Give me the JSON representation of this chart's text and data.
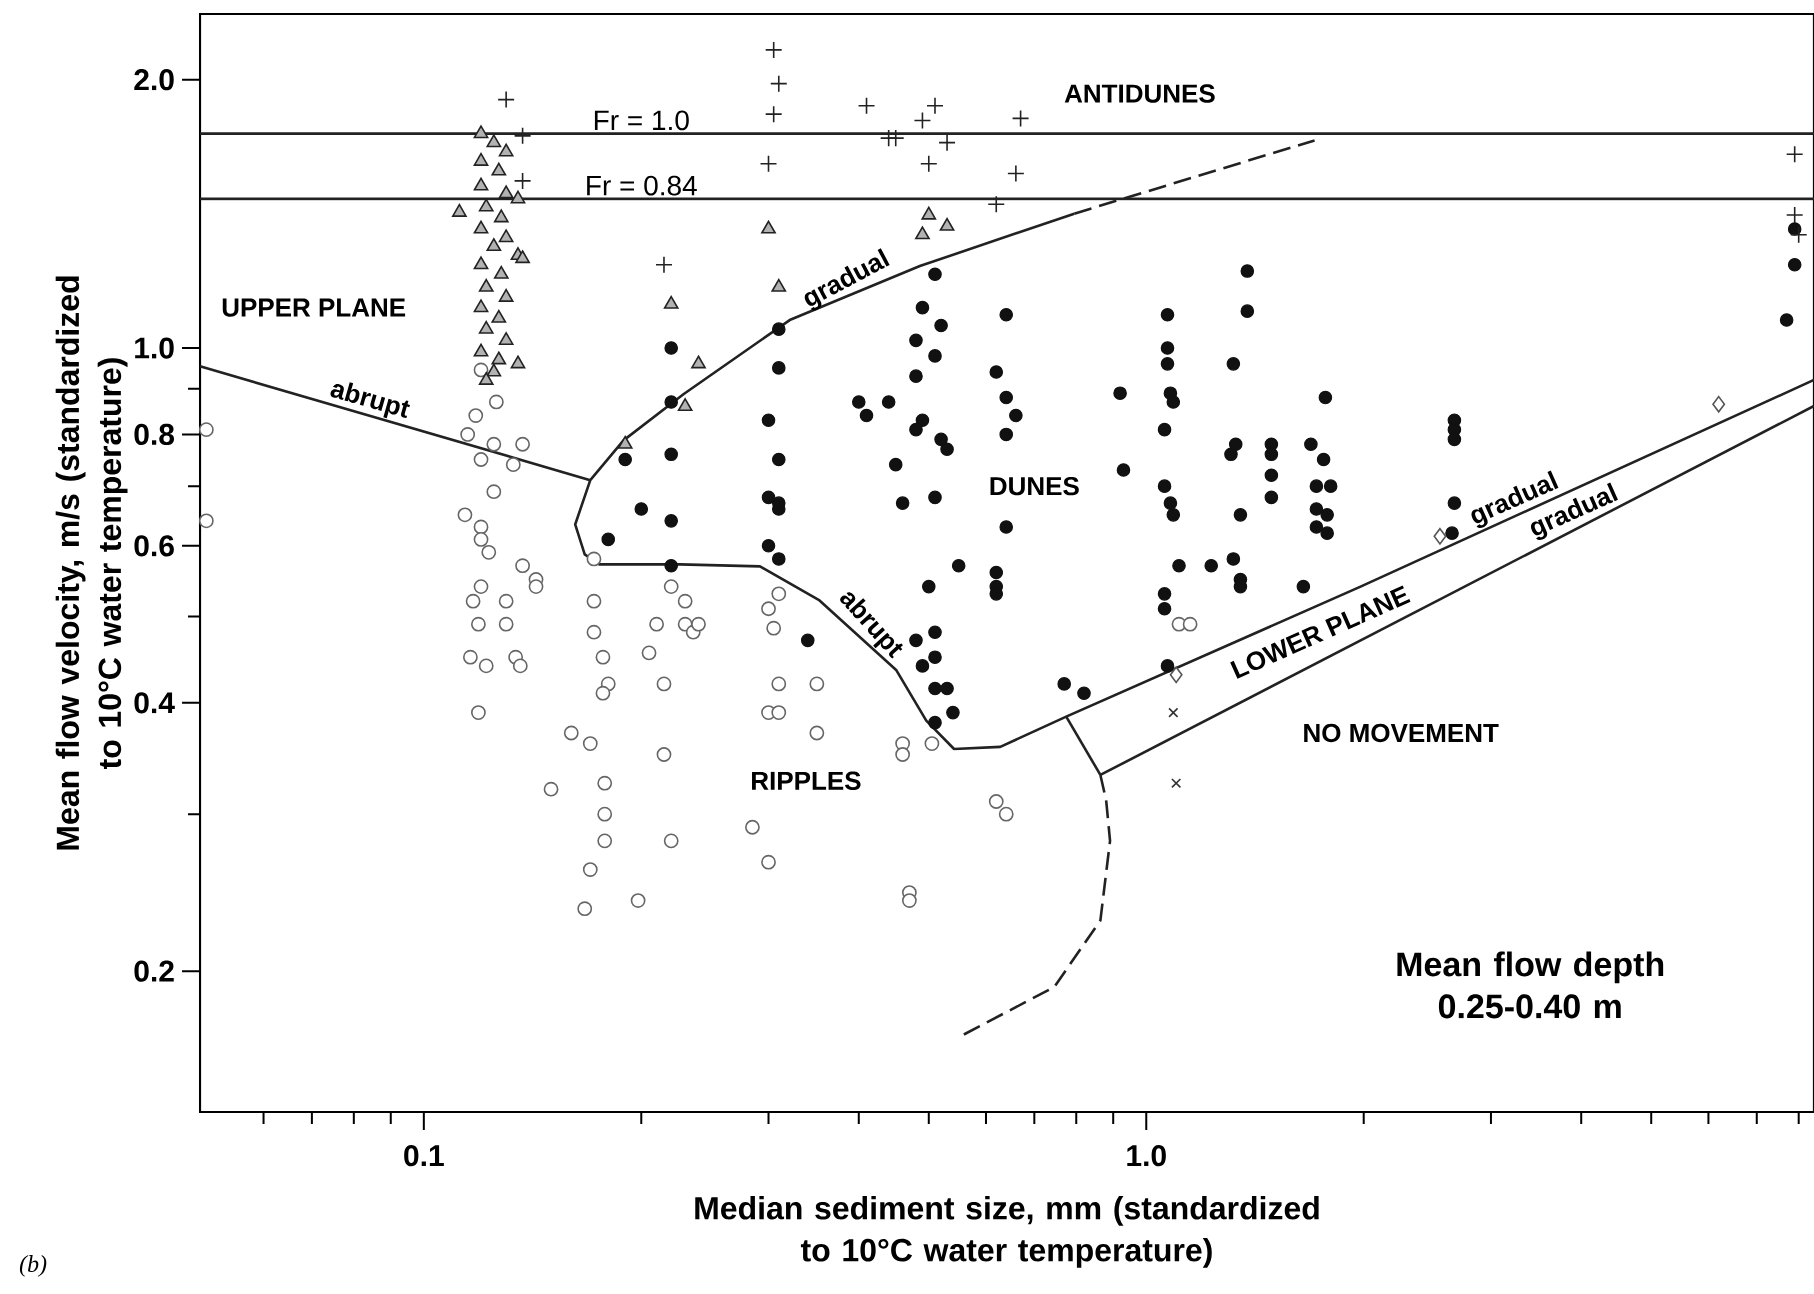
{
  "chart_data": {
    "type": "scatter",
    "log": "xy",
    "xlabel": "Median sediment size, mm (standardized to 10°C water temperature)",
    "ylabel": "Mean flow velocity, m/s (standardized to 10°C water temperature)",
    "xlim": [
      0.049,
      8.4
    ],
    "ylim": [
      0.139,
      2.37
    ],
    "xticks": [
      {
        "value": 0.06,
        "label": null
      },
      {
        "value": 0.07,
        "label": null
      },
      {
        "value": 0.08,
        "label": null
      },
      {
        "value": 0.09,
        "label": null
      },
      0.1,
      {
        "value": 0.2,
        "label": null
      },
      {
        "value": 0.3,
        "label": null
      },
      {
        "value": 0.4,
        "label": null
      },
      {
        "value": 0.5,
        "label": null
      },
      {
        "value": 0.6,
        "label": null
      },
      {
        "value": 0.7,
        "label": null
      },
      {
        "value": 0.8,
        "label": null
      },
      {
        "value": 0.9,
        "label": null
      },
      {
        "value": 1,
        "label": "1.0"
      },
      {
        "value": 2,
        "label": null
      },
      {
        "value": 3,
        "label": null
      },
      {
        "value": 4,
        "label": null
      },
      {
        "value": 5,
        "label": null
      },
      {
        "value": 6,
        "label": null
      },
      {
        "value": 7,
        "label": null
      },
      {
        "value": 8,
        "label": null
      }
    ],
    "yticks": [
      0.2,
      {
        "value": 0.3,
        "label": null
      },
      0.4,
      {
        "value": 0.5,
        "label": null
      },
      0.6,
      {
        "value": 0.7,
        "label": null
      },
      0.8,
      {
        "value": 0.9,
        "label": null
      },
      {
        "value": 1,
        "label": "1.0"
      },
      {
        "value": 2,
        "label": "2.0"
      }
    ],
    "ref_lines": [
      {
        "axis": "y",
        "value": 1.74,
        "color": "#222222"
      },
      {
        "axis": "y",
        "value": 1.47,
        "color": "#222222"
      }
    ],
    "series": [
      {
        "marker": "open circle",
        "color": "#666666",
        "x": [
          0.05,
          0.05,
          0.12,
          0.126,
          0.118,
          0.115,
          0.125,
          0.137,
          0.12,
          0.133,
          0.125,
          0.114,
          0.12,
          0.12,
          0.123,
          0.137,
          0.143,
          0.12,
          0.117,
          0.13,
          0.119,
          0.13,
          0.116,
          0.122,
          0.134,
          0.136,
          0.119,
          0.143,
          0.172,
          0.172,
          0.172,
          0.177,
          0.18,
          0.177,
          0.16,
          0.17,
          0.15,
          0.178,
          0.178,
          0.178,
          0.17,
          0.167,
          0.198,
          0.205,
          0.21,
          0.215,
          0.215,
          0.22,
          0.22,
          0.23,
          0.23,
          0.236,
          0.24,
          0.285,
          0.3,
          0.3,
          0.31,
          0.3,
          0.305,
          0.31,
          0.31,
          0.35,
          0.35,
          0.46,
          0.46,
          0.505,
          0.62,
          0.64,
          0.47,
          0.47,
          1.11,
          1.15
        ],
        "values": [
          0.81,
          0.64,
          0.945,
          0.87,
          0.84,
          0.8,
          0.78,
          0.78,
          0.75,
          0.74,
          0.69,
          0.65,
          0.63,
          0.61,
          0.59,
          0.57,
          0.55,
          0.54,
          0.52,
          0.52,
          0.49,
          0.49,
          0.45,
          0.44,
          0.45,
          0.44,
          0.39,
          0.54,
          0.58,
          0.52,
          0.48,
          0.45,
          0.42,
          0.41,
          0.37,
          0.36,
          0.32,
          0.325,
          0.3,
          0.28,
          0.26,
          0.235,
          0.24,
          0.455,
          0.49,
          0.42,
          0.35,
          0.28,
          0.54,
          0.52,
          0.49,
          0.48,
          0.49,
          0.29,
          0.265,
          0.39,
          0.39,
          0.51,
          0.485,
          0.42,
          0.53,
          0.42,
          0.37,
          0.36,
          0.35,
          0.36,
          0.31,
          0.3,
          0.245,
          0.24,
          0.49,
          0.49
        ]
      },
      {
        "marker": "circle",
        "color": "#111111",
        "x": [
          0.31,
          0.31,
          0.3,
          0.31,
          0.3,
          0.31,
          0.3,
          0.31,
          0.22,
          0.22,
          0.22,
          0.2,
          0.22,
          0.18,
          0.22,
          0.19,
          0.51,
          0.49,
          0.52,
          0.48,
          0.51,
          0.48,
          0.64,
          0.62,
          0.64,
          0.66,
          0.64,
          0.4,
          0.44,
          0.41,
          0.49,
          0.48,
          0.52,
          0.53,
          0.45,
          0.46,
          0.51,
          0.64,
          0.55,
          0.5,
          0.62,
          0.62,
          0.31,
          0.92,
          0.93,
          1.07,
          1.07,
          1.07,
          1.08,
          1.09,
          1.06,
          1.06,
          1.08,
          1.09,
          1.11,
          1.06,
          1.23,
          1.32,
          1.35,
          1.38,
          1.38,
          1.32,
          1.33,
          1.31,
          1.35,
          1.49,
          1.49,
          1.49,
          1.49,
          1.77,
          1.69,
          1.76,
          1.72,
          1.8,
          1.72,
          1.78,
          1.72,
          1.78,
          1.65,
          2.67,
          2.67,
          2.67,
          2.67,
          2.65,
          7.9,
          7.9,
          7.7,
          0.34,
          0.48,
          0.51,
          0.49,
          0.51,
          0.51,
          0.53,
          0.54,
          0.51,
          0.77,
          0.82,
          1.07,
          1.06,
          1.35,
          0.62
        ],
        "values": [
          1.05,
          0.95,
          0.83,
          0.75,
          0.68,
          0.66,
          0.6,
          0.58,
          1.0,
          0.87,
          0.76,
          0.66,
          0.64,
          0.61,
          0.57,
          0.75,
          1.21,
          1.11,
          1.06,
          1.02,
          0.98,
          0.93,
          1.09,
          0.94,
          0.88,
          0.84,
          0.8,
          0.87,
          0.87,
          0.84,
          0.83,
          0.81,
          0.79,
          0.77,
          0.74,
          0.67,
          0.68,
          0.63,
          0.57,
          0.54,
          0.56,
          0.54,
          0.67,
          0.89,
          0.73,
          1.09,
          1.0,
          0.96,
          0.89,
          0.87,
          0.81,
          0.7,
          0.67,
          0.65,
          0.57,
          0.53,
          0.57,
          0.58,
          0.55,
          1.22,
          1.1,
          0.96,
          0.78,
          0.76,
          0.65,
          0.78,
          0.76,
          0.72,
          0.68,
          0.88,
          0.78,
          0.75,
          0.7,
          0.7,
          0.66,
          0.65,
          0.63,
          0.62,
          0.54,
          0.83,
          0.81,
          0.79,
          0.67,
          0.62,
          1.36,
          1.24,
          1.075,
          0.47,
          0.47,
          0.48,
          0.44,
          0.45,
          0.415,
          0.415,
          0.39,
          0.38,
          0.42,
          0.41,
          0.44,
          0.51,
          0.54,
          0.53
        ]
      },
      {
        "marker": "triangle",
        "color": "#222222",
        "x": [
          0.12,
          0.125,
          0.13,
          0.12,
          0.127,
          0.12,
          0.13,
          0.135,
          0.122,
          0.128,
          0.12,
          0.13,
          0.125,
          0.135,
          0.12,
          0.128,
          0.122,
          0.13,
          0.12,
          0.127,
          0.122,
          0.13,
          0.12,
          0.127,
          0.135,
          0.125,
          0.122,
          0.112,
          0.137,
          0.3,
          0.31,
          0.22,
          0.24,
          0.23,
          0.19,
          0.5,
          0.49,
          0.53
        ],
        "values": [
          1.74,
          1.7,
          1.66,
          1.62,
          1.58,
          1.52,
          1.49,
          1.47,
          1.44,
          1.4,
          1.36,
          1.33,
          1.3,
          1.27,
          1.24,
          1.21,
          1.17,
          1.14,
          1.11,
          1.08,
          1.05,
          1.02,
          0.99,
          0.97,
          0.96,
          0.94,
          0.92,
          1.42,
          1.26,
          1.36,
          1.17,
          1.12,
          0.96,
          0.86,
          0.78,
          1.41,
          1.34,
          1.37
        ]
      },
      {
        "marker": "plus",
        "color": "#222222",
        "x": [
          0.13,
          0.137,
          0.137,
          0.305,
          0.31,
          0.305,
          0.3,
          0.215,
          0.41,
          0.44,
          0.45,
          0.49,
          0.51,
          0.53,
          0.5,
          0.67,
          0.66,
          0.62,
          7.9,
          7.9,
          8.0
        ],
        "values": [
          1.9,
          1.73,
          1.54,
          2.16,
          1.98,
          1.83,
          1.61,
          1.24,
          1.87,
          1.72,
          1.72,
          1.8,
          1.87,
          1.7,
          1.61,
          1.81,
          1.57,
          1.45,
          1.65,
          1.41,
          1.34
        ]
      },
      {
        "marker": "diamond",
        "color": "#555555",
        "x": [
          6.2,
          2.55,
          1.1
        ],
        "values": [
          0.865,
          0.615,
          0.43
        ]
      },
      {
        "marker": "cross",
        "color": "#333333",
        "x": [
          1.09,
          1.1
        ],
        "values": [
          0.39,
          0.325
        ]
      },
      {
        "type": "line",
        "line_style": "solid",
        "color": "#222222",
        "x": [
          0.049,
          0.17
        ],
        "values": [
          0.954,
          0.711
        ]
      },
      {
        "type": "line",
        "line_style": "solid",
        "color": "#222222",
        "x": [
          0.795,
          0.486,
          0.321,
          0.229,
          0.189,
          0.17,
          0.162,
          0.167,
          0.175,
          0.226,
          0.292,
          0.353,
          0.451,
          0.496,
          0.542,
          0.628,
          0.775,
          1.98,
          8.4
        ],
        "values": [
          1.415,
          1.236,
          1.075,
          0.888,
          0.788,
          0.711,
          0.634,
          0.587,
          0.572,
          0.572,
          0.569,
          0.521,
          0.435,
          0.382,
          0.355,
          0.357,
          0.386,
          0.54,
          0.921
        ]
      },
      {
        "type": "line",
        "line_style": "dashed",
        "color": "#222222",
        "x": [
          0.795,
          1.71
        ],
        "values": [
          1.415,
          1.71
        ]
      },
      {
        "type": "line",
        "line_style": "solid",
        "color": "#222222",
        "x": [
          0.864,
          8.4
        ],
        "values": [
          0.332,
          0.861
        ]
      },
      {
        "type": "line",
        "line_style": "solid",
        "color": "#222222",
        "x": [
          0.775,
          0.864
        ],
        "values": [
          0.386,
          0.332
        ]
      },
      {
        "type": "line",
        "line_style": "dashed",
        "color": "#222222",
        "x": [
          0.864,
          0.88,
          0.891,
          0.864,
          0.746,
          0.553
        ],
        "values": [
          0.332,
          0.311,
          0.28,
          0.228,
          0.192,
          0.169
        ]
      }
    ],
    "annotations": [
      "ANTIDUNES",
      "UPPER  PLANE",
      {
        "text": "abrupt",
        "x": 0.083,
        "y": 0.84
      },
      {
        "text": "gradual",
        "x": 0.394,
        "y": 1.15
      },
      "DUNES",
      {
        "text": "abrupt",
        "x": 0.4,
        "y": 0.477
      },
      "RIPPLES",
      "LOWER PLANE",
      "NO  MOVEMENT",
      {
        "text": "gradual",
        "x": 3.3,
        "y": 0.651
      },
      {
        "text": "gradual",
        "x": 3.99,
        "y": 0.631
      },
      "Mean  flow depth 0.25-0.40  m",
      "(b)",
      {
        "text": "Fr = 1.0",
        "x": 0.2,
        "y": 1.74
      },
      {
        "text": "Fr = 0.84",
        "x": 0.2,
        "y": 1.47
      }
    ]
  }
}
